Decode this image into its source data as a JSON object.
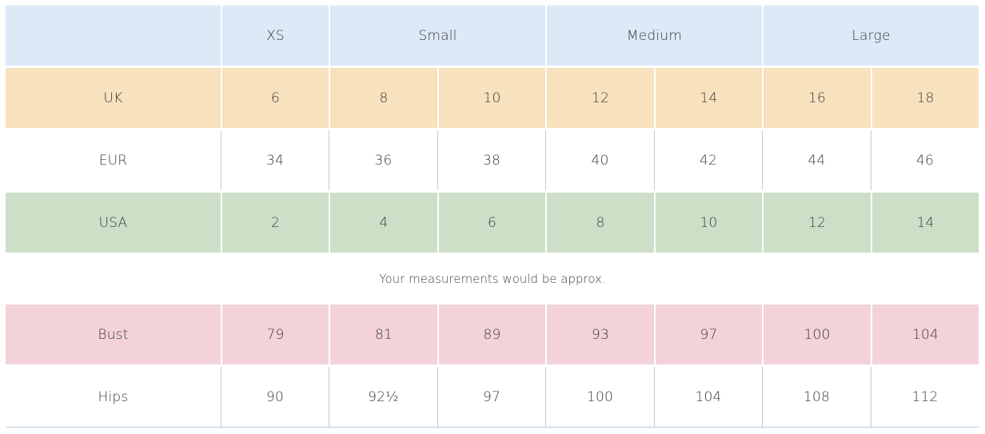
{
  "header": {
    "blank": "",
    "xs": "XS",
    "small": "Small",
    "medium": "Medium",
    "large": "Large"
  },
  "rows": {
    "uk": {
      "label": "UK",
      "values": [
        "6",
        "8",
        "10",
        "12",
        "14",
        "16",
        "18"
      ]
    },
    "eur": {
      "label": "EUR",
      "values": [
        "34",
        "36",
        "38",
        "40",
        "42",
        "44",
        "46"
      ]
    },
    "usa": {
      "label": "USA",
      "values": [
        "2",
        "4",
        "6",
        "8",
        "10",
        "12",
        "14"
      ]
    }
  },
  "note": "Your measurements would be approx.",
  "measurements": {
    "bust": {
      "label": "Bust",
      "values": [
        "79",
        "81",
        "89",
        "93",
        "97",
        "100",
        "104"
      ]
    },
    "hips": {
      "label": "Hips",
      "values": [
        "90",
        "92½",
        "97",
        "100",
        "104",
        "108",
        "112"
      ]
    }
  },
  "colors": {
    "header_bg": "#dce9f7",
    "uk_bg": "#f8e1bd",
    "usa_bg": "#cde0c7",
    "bust_bg": "#f3d3d9",
    "divider": "#b9cfe0"
  }
}
